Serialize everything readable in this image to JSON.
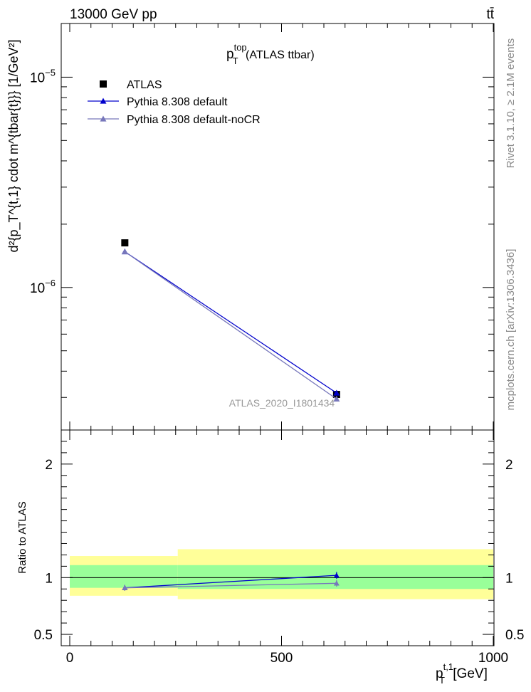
{
  "header": {
    "collision": "13000 GeV pp",
    "process": "tt̄"
  },
  "side_labels": {
    "rivet": "Rivet 3.1.10, ≥ 2.1M events",
    "mcplots": "mcplots.cern.ch [arXiv:1306.3436]"
  },
  "watermark": "ATLAS_2020_I1801434",
  "chart_data": [
    {
      "type": "line",
      "title": {
        "main": "p",
        "sup": "top",
        "sub": "T",
        "suffix": " (ATLAS ttbar)"
      },
      "ylabel": "d²{p_T^{t,1} cdot m^{tbar{t}}} [1/GeV²]",
      "yscale": "log",
      "xlim": [
        0,
        1000
      ],
      "ylim": [
        2.1e-07,
        1.8e-05
      ],
      "yticks": [
        {
          "value": 1e-06,
          "base": "10",
          "exp": "−6"
        },
        {
          "value": 1e-05,
          "base": "10",
          "exp": "−5"
        }
      ],
      "legend": {
        "position": "top-left",
        "entries": [
          "ATLAS",
          "Pythia 8.308 default",
          "Pythia 8.308 default-noCR"
        ]
      },
      "series": [
        {
          "name": "ATLAS",
          "marker": "square",
          "color": "#000000",
          "x": [
            130,
            630
          ],
          "y": [
            1.63e-06,
            3.1e-07
          ]
        },
        {
          "name": "Pythia 8.308 default",
          "marker": "triangle",
          "color": "#0000cc",
          "x": [
            130,
            630
          ],
          "y": [
            1.48e-06,
            3.15e-07
          ]
        },
        {
          "name": "Pythia 8.308 default-noCR",
          "marker": "triangle",
          "color": "#7777bb",
          "x": [
            130,
            630
          ],
          "y": [
            1.48e-06,
            2.95e-07
          ]
        }
      ]
    },
    {
      "type": "line",
      "ylabel": "Ratio to ATLAS",
      "xlabel": {
        "main": "p",
        "sup": "t,1",
        "sub": "T",
        "suffix": " [GeV]"
      },
      "xlim": [
        0,
        1000
      ],
      "ylim": [
        0.4,
        2.3
      ],
      "xticks": [
        {
          "value": 0,
          "label": "0"
        },
        {
          "value": 500,
          "label": "500"
        },
        {
          "value": 1000,
          "label": "1000"
        }
      ],
      "yticks": [
        {
          "value": 0.5,
          "label": "0.5"
        },
        {
          "value": 1,
          "label": "1"
        },
        {
          "value": 2,
          "label": "2"
        }
      ],
      "bands": [
        {
          "x": [
            0,
            255
          ],
          "yellow": [
            0.84,
            1.19
          ],
          "green": [
            0.91,
            1.11
          ]
        },
        {
          "x": [
            255,
            1000
          ],
          "yellow": [
            0.81,
            1.25
          ],
          "green": [
            0.9,
            1.11
          ]
        }
      ],
      "series": [
        {
          "name": "Pythia 8.308 default",
          "color": "#0000cc",
          "x": [
            130,
            630
          ],
          "y": [
            0.91,
            1.02
          ],
          "err": [
            0.025,
            0.03
          ]
        },
        {
          "name": "Pythia 8.308 default-noCR",
          "color": "#7777bb",
          "x": [
            130,
            630
          ],
          "y": [
            0.91,
            0.95
          ],
          "err": [
            0.025,
            0.03
          ]
        }
      ]
    }
  ]
}
